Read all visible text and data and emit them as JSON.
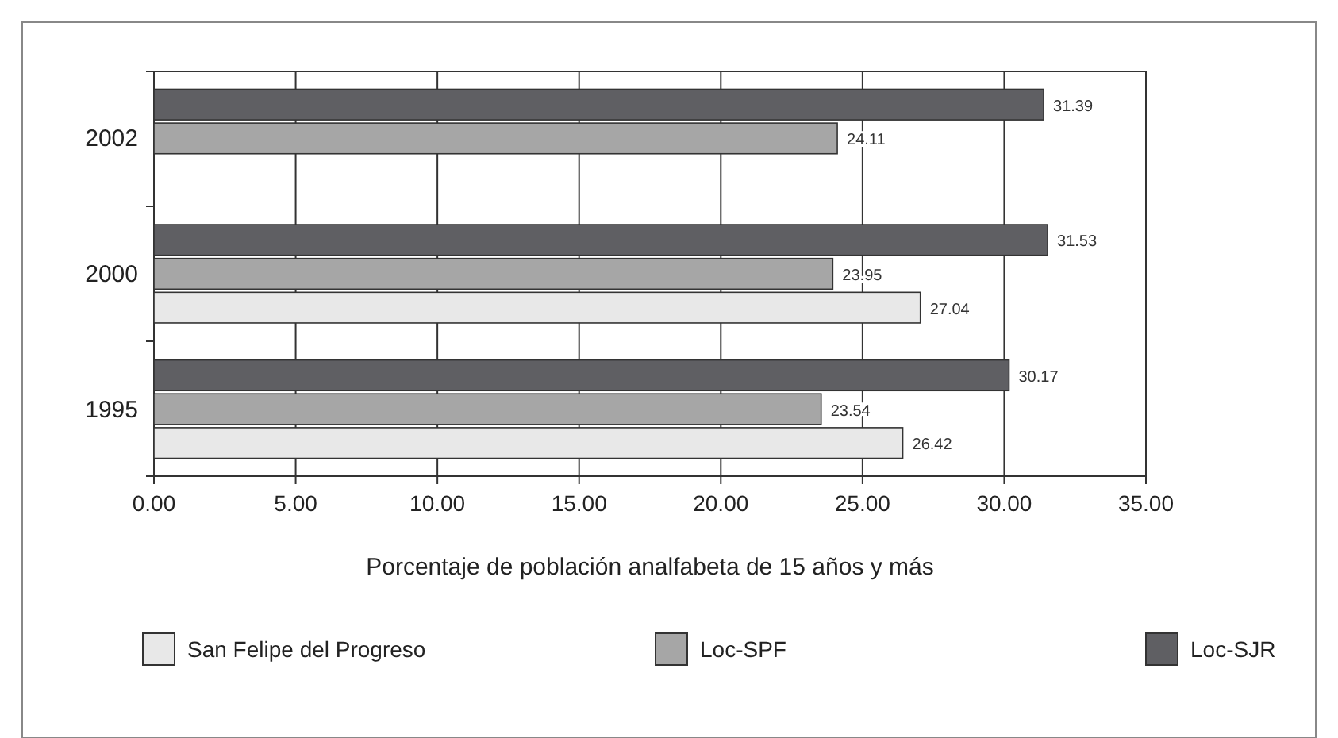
{
  "chart_data": {
    "type": "bar",
    "orientation": "horizontal",
    "xlabel": "Porcentaje de población analfabeta de 15 años y más",
    "categories": [
      "2002",
      "2000",
      "1995"
    ],
    "series": [
      {
        "name": "San Felipe del Progreso",
        "color": "#e8e8e8",
        "values": [
          null,
          27.04,
          26.42
        ]
      },
      {
        "name": "Loc-SPF",
        "color": "#a6a6a6",
        "values": [
          24.11,
          23.95,
          23.54
        ]
      },
      {
        "name": "Loc-SJR",
        "color": "#5f5f63",
        "values": [
          31.39,
          31.53,
          30.17
        ]
      }
    ],
    "xlim": [
      0,
      35
    ],
    "xticks": [
      {
        "value": 0,
        "label": "0.00"
      },
      {
        "value": 5,
        "label": "5.00"
      },
      {
        "value": 10,
        "label": "10.00"
      },
      {
        "value": 15,
        "label": "15.00"
      },
      {
        "value": 20,
        "label": "20.00"
      },
      {
        "value": 25,
        "label": "25.00"
      },
      {
        "value": 30,
        "label": "30.00"
      },
      {
        "value": 35,
        "label": "35.00"
      }
    ],
    "grid": "x",
    "data_labels": true,
    "legend": "bottom"
  }
}
